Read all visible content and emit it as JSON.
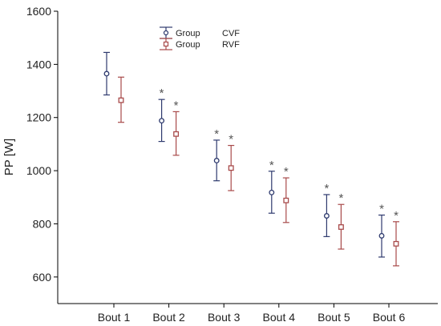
{
  "chart_data": {
    "type": "scatter",
    "ylabel": "PP [W]",
    "xlabel": "",
    "ylim": [
      500,
      1600
    ],
    "yticks": [
      600,
      800,
      1000,
      1200,
      1400,
      1600
    ],
    "categories": [
      "Bout 1",
      "Bout 2",
      "Bout 3",
      "Bout 4",
      "Bout 5",
      "Bout 6"
    ],
    "series": [
      {
        "name": "Group CVF",
        "legend_left": "Group",
        "legend_right": "CVF",
        "color": "#2e3a6e",
        "marker": "circle",
        "values": [
          1365,
          1188,
          1038,
          918,
          830,
          755
        ],
        "lower": [
          1285,
          1110,
          962,
          840,
          752,
          675
        ],
        "upper": [
          1445,
          1268,
          1115,
          998,
          910,
          833
        ],
        "stars": [
          "",
          "*",
          "*",
          "*",
          "*",
          "*"
        ]
      },
      {
        "name": "Group RVF",
        "legend_left": "Group",
        "legend_right": "RVF",
        "color": "#a84a4a",
        "marker": "square",
        "values": [
          1265,
          1138,
          1010,
          888,
          788,
          725
        ],
        "lower": [
          1182,
          1058,
          925,
          805,
          705,
          642
        ],
        "upper": [
          1352,
          1222,
          1095,
          973,
          873,
          808
        ],
        "stars": [
          "",
          "*",
          "*",
          "*",
          "*",
          "*"
        ]
      }
    ],
    "legend_position": "top-left-inside",
    "grid": false
  }
}
